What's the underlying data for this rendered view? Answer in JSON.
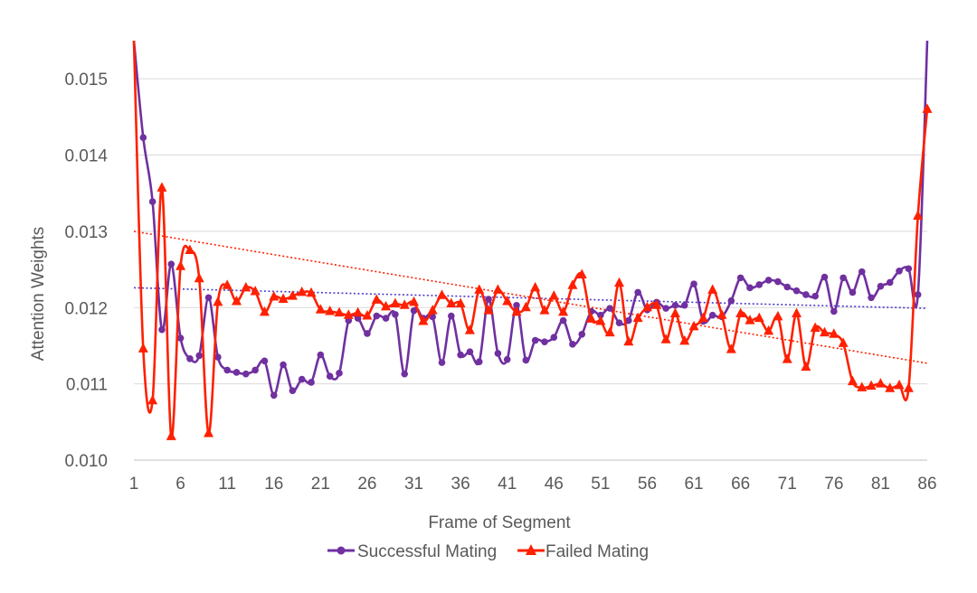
{
  "chart_data": {
    "type": "line",
    "title": "",
    "xlabel": "Frame of Segment",
    "ylabel": "Attention Weights",
    "x": [
      1,
      2,
      3,
      4,
      5,
      6,
      7,
      8,
      9,
      10,
      11,
      12,
      13,
      14,
      15,
      16,
      17,
      18,
      19,
      20,
      21,
      22,
      23,
      24,
      25,
      26,
      27,
      28,
      29,
      30,
      31,
      32,
      33,
      34,
      35,
      36,
      37,
      38,
      39,
      40,
      41,
      42,
      43,
      44,
      45,
      46,
      47,
      48,
      49,
      50,
      51,
      52,
      53,
      54,
      55,
      56,
      57,
      58,
      59,
      60,
      61,
      62,
      63,
      64,
      65,
      66,
      67,
      68,
      69,
      70,
      71,
      72,
      73,
      74,
      75,
      76,
      77,
      78,
      79,
      80,
      81,
      82,
      83,
      84,
      85,
      86
    ],
    "xlim": [
      1,
      86
    ],
    "ylim": [
      0.01,
      0.0155
    ],
    "x_ticks": [
      "1",
      "6",
      "11",
      "16",
      "21",
      "26",
      "31",
      "36",
      "41",
      "46",
      "51",
      "56",
      "61",
      "66",
      "71",
      "76",
      "81",
      "86"
    ],
    "x_tick_values": [
      1,
      6,
      11,
      16,
      21,
      26,
      31,
      36,
      41,
      46,
      51,
      56,
      61,
      66,
      71,
      76,
      81,
      86
    ],
    "y_ticks": [
      "0.010",
      "0.011",
      "0.012",
      "0.013",
      "0.014",
      "0.015"
    ],
    "y_tick_values": [
      0.01,
      0.011,
      0.012,
      0.013,
      0.014,
      0.015
    ],
    "grid": true,
    "legend_position": "bottom",
    "series": [
      {
        "name": "Successful Mating",
        "color": "#7030A0",
        "marker": "circle",
        "values": [
          0.0155,
          0.01423,
          0.01339,
          0.01171,
          0.01257,
          0.0116,
          0.01133,
          0.01137,
          0.01213,
          0.01135,
          0.01118,
          0.01115,
          0.01113,
          0.01118,
          0.0113,
          0.01085,
          0.01125,
          0.01091,
          0.01106,
          0.01102,
          0.01138,
          0.0111,
          0.01114,
          0.01183,
          0.01186,
          0.01166,
          0.01189,
          0.01186,
          0.01191,
          0.01113,
          0.01196,
          0.01186,
          0.01188,
          0.01128,
          0.01189,
          0.01138,
          0.01142,
          0.01129,
          0.01211,
          0.0114,
          0.01132,
          0.01203,
          0.01131,
          0.01157,
          0.01155,
          0.01161,
          0.01183,
          0.01152,
          0.01165,
          0.01195,
          0.0119,
          0.01199,
          0.0118,
          0.01183,
          0.0122,
          0.01197,
          0.01207,
          0.01199,
          0.01203,
          0.01203,
          0.01231,
          0.01182,
          0.0119,
          0.01188,
          0.01209,
          0.01239,
          0.01226,
          0.0123,
          0.01236,
          0.01234,
          0.01227,
          0.01222,
          0.01217,
          0.01215,
          0.0124,
          0.01195,
          0.01239,
          0.0122,
          0.01247,
          0.01213,
          0.01228,
          0.01233,
          0.01248,
          0.01251,
          0.01217,
          0.0155
        ]
      },
      {
        "name": "Failed Mating",
        "color": "#FF2000",
        "marker": "triangle",
        "values": [
          0.0155,
          0.01146,
          0.01078,
          0.01357,
          0.01031,
          0.01254,
          0.01275,
          0.01238,
          0.01035,
          0.01207,
          0.01229,
          0.01208,
          0.01226,
          0.01221,
          0.01194,
          0.01214,
          0.01211,
          0.01215,
          0.0122,
          0.01219,
          0.01197,
          0.01195,
          0.01193,
          0.0119,
          0.01193,
          0.01189,
          0.0121,
          0.01201,
          0.01205,
          0.01203,
          0.01207,
          0.01182,
          0.01196,
          0.01216,
          0.01205,
          0.01205,
          0.0117,
          0.01223,
          0.01196,
          0.01223,
          0.01208,
          0.01194,
          0.012,
          0.01226,
          0.01196,
          0.01215,
          0.01194,
          0.01229,
          0.01243,
          0.01185,
          0.01182,
          0.01167,
          0.01232,
          0.01155,
          0.01186,
          0.012,
          0.01203,
          0.01158,
          0.01192,
          0.01156,
          0.01175,
          0.01186,
          0.01223,
          0.0119,
          0.01145,
          0.01192,
          0.01183,
          0.01186,
          0.01169,
          0.01188,
          0.01132,
          0.01192,
          0.01122,
          0.01173,
          0.01167,
          0.01165,
          0.01153,
          0.01103,
          0.01095,
          0.01097,
          0.011,
          0.01094,
          0.01098,
          0.01094,
          0.0132,
          0.0146
        ]
      }
    ],
    "trendlines": [
      {
        "series": "Successful Mating",
        "color": "#4B3BC8",
        "x": [
          1,
          86
        ],
        "y": [
          0.01226,
          0.01199
        ]
      },
      {
        "series": "Failed Mating",
        "color": "#FF2000",
        "x": [
          1,
          86
        ],
        "y": [
          0.013,
          0.01127
        ]
      }
    ]
  }
}
